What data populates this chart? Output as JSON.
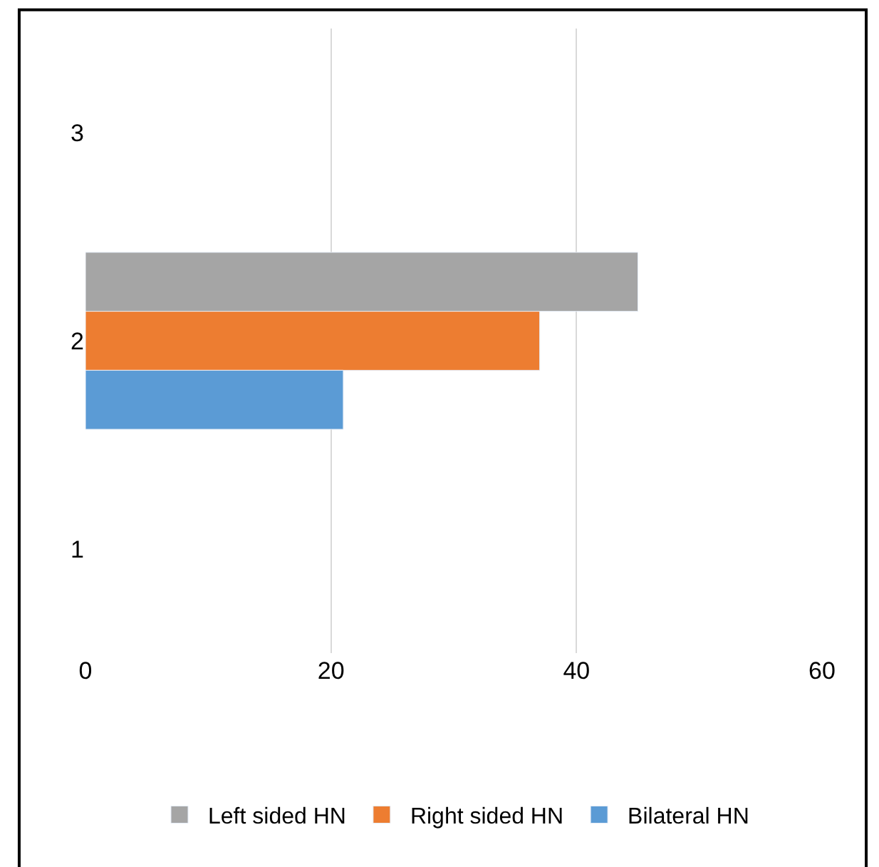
{
  "chart_data": {
    "type": "bar",
    "orientation": "horizontal",
    "categories": [
      "3",
      "2",
      "1"
    ],
    "series": [
      {
        "name": "Left sided HN",
        "color": "#a5a5a5",
        "values": [
          null,
          45,
          null
        ]
      },
      {
        "name": "Right sided HN",
        "color": "#ed7d31",
        "values": [
          null,
          37,
          null
        ]
      },
      {
        "name": "Bilateral HN",
        "color": "#5b9bd5",
        "values": [
          null,
          21,
          null
        ]
      }
    ],
    "xlim": [
      0,
      60
    ],
    "xticks": [
      0,
      20,
      40,
      60
    ],
    "grid": "x",
    "legend": "bottom"
  }
}
